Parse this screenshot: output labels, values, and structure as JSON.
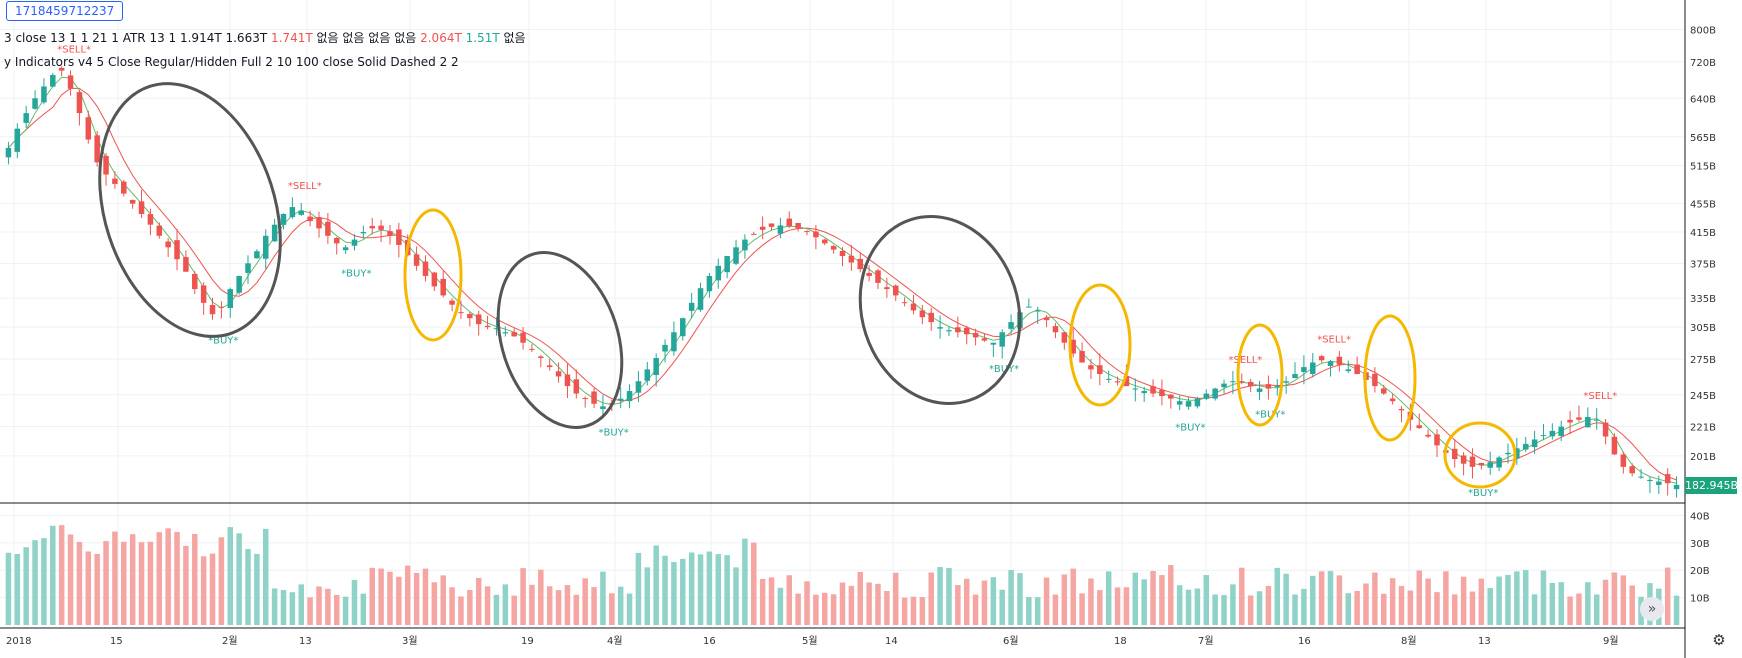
{
  "symbol_label": "1718459712237",
  "legend": {
    "line1": [
      {
        "text": "3 close 13 1 1 21 1 ATR 13 1",
        "color": "#131722"
      },
      {
        "text": "1.914T",
        "color": "#131722"
      },
      {
        "text": "1.663T",
        "color": "#131722"
      },
      {
        "text": "1.741T",
        "color": "#ef5350"
      },
      {
        "text": "없음",
        "color": "#131722"
      },
      {
        "text": "없음",
        "color": "#131722"
      },
      {
        "text": "없음",
        "color": "#131722"
      },
      {
        "text": "없음",
        "color": "#131722"
      },
      {
        "text": "2.064T",
        "color": "#ef5350"
      },
      {
        "text": "1.51T",
        "color": "#26a69a"
      },
      {
        "text": "없음",
        "color": "#131722"
      }
    ],
    "line2": "y Indicators v4 5 Close Regular/Hidden Full 2 10 100 close Solid Dashed 2 2"
  },
  "price_axis_labels": [
    "800B",
    "720B",
    "640B",
    "565B",
    "515B",
    "455B",
    "415B",
    "375B",
    "335B",
    "305B",
    "275B",
    "245B",
    "221B",
    "201B"
  ],
  "volume_axis_labels": [
    "40B",
    "30B",
    "20B",
    "10B"
  ],
  "time_axis_labels": [
    "2018",
    "15",
    "2월",
    "13",
    "3월",
    "19",
    "4월",
    "16",
    "5월",
    "14",
    "6월",
    "18",
    "7월",
    "16",
    "8월",
    "13",
    "9월"
  ],
  "last_price_label": "182.945B",
  "signal_labels": {
    "buy": "*BUY*",
    "sell": "*SELL*"
  },
  "colors": {
    "up": "#26a69a",
    "down": "#ef5350",
    "volume_up": "#8fd3c8",
    "volume_down": "#f5a6a3",
    "ma_line": "#ef5350",
    "signal_line": "#66bb6a",
    "annotation_gray": "#555555",
    "annotation_yellow": "#f5b800",
    "accent": "#2962ff"
  },
  "icons": {
    "scroll": "double-chevron-right-icon",
    "settings": "gear-icon"
  },
  "chart_data": {
    "type": "candlestick",
    "y_scale": "log",
    "ylim": [
      180,
      830
    ],
    "volume_ylim": [
      0,
      42
    ],
    "close_series": [
      545,
      580,
      610,
      640,
      665,
      690,
      700,
      660,
      610,
      560,
      520,
      500,
      485,
      470,
      455,
      440,
      425,
      410,
      395,
      380,
      365,
      345,
      330,
      318,
      325,
      345,
      360,
      375,
      390,
      410,
      425,
      440,
      450,
      445,
      430,
      420,
      410,
      400,
      395,
      405,
      415,
      420,
      418,
      410,
      398,
      385,
      372,
      360,
      348,
      338,
      328,
      320,
      314,
      308,
      305,
      304,
      300,
      296,
      290,
      284,
      276,
      268,
      260,
      252,
      246,
      242,
      238,
      236,
      238,
      242,
      248,
      256,
      266,
      276,
      288,
      300,
      314,
      330,
      346,
      360,
      372,
      384,
      395,
      405,
      412,
      418,
      422,
      424,
      423,
      420,
      415,
      408,
      400,
      392,
      384,
      376,
      368,
      360,
      352,
      345,
      338,
      330,
      322,
      315,
      310,
      305,
      302,
      300,
      298,
      295,
      292,
      290,
      300,
      310,
      320,
      326,
      322,
      312,
      300,
      290,
      280,
      272,
      266,
      262,
      258,
      255,
      252,
      250,
      248,
      246,
      244,
      242,
      240,
      240,
      242,
      246,
      250,
      254,
      256,
      255,
      252,
      250,
      250,
      252,
      256,
      262,
      268,
      272,
      274,
      273,
      270,
      266,
      262,
      257,
      252,
      246,
      240,
      233,
      226,
      220,
      214,
      208,
      203,
      199,
      196,
      194,
      195,
      197,
      200,
      203,
      206,
      209,
      212,
      215,
      218,
      221,
      224,
      226,
      228,
      226,
      214,
      202,
      194,
      190,
      188,
      186,
      185,
      184,
      183
    ]
  }
}
